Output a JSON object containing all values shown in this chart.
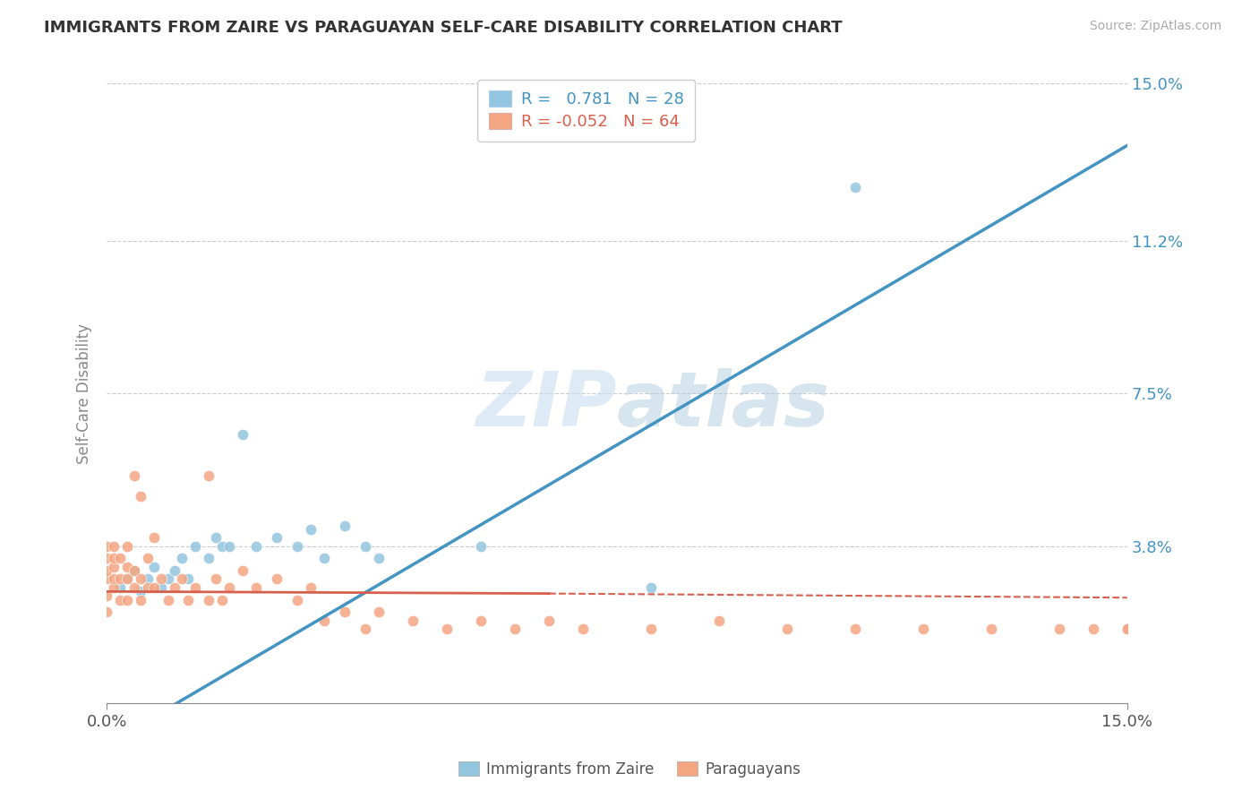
{
  "title": "IMMIGRANTS FROM ZAIRE VS PARAGUAYAN SELF-CARE DISABILITY CORRELATION CHART",
  "source": "Source: ZipAtlas.com",
  "ylabel": "Self-Care Disability",
  "xmin": 0.0,
  "xmax": 0.15,
  "ymin": 0.0,
  "ymax": 0.15,
  "right_yticks": [
    0.038,
    0.075,
    0.112,
    0.15
  ],
  "right_ytick_labels": [
    "3.8%",
    "7.5%",
    "11.2%",
    "15.0%"
  ],
  "xtick_labels": [
    "0.0%",
    "15.0%"
  ],
  "legend_R_blue": "0.781",
  "legend_N_blue": "28",
  "legend_R_pink": "-0.052",
  "legend_N_pink": "64",
  "blue_color": "#92c5de",
  "pink_color": "#f4a582",
  "blue_line_color": "#4393c3",
  "pink_line_color": "#d6604d",
  "watermark_color": "#ddeeff",
  "blue_scatter_x": [
    0.002,
    0.003,
    0.004,
    0.005,
    0.006,
    0.007,
    0.008,
    0.009,
    0.01,
    0.011,
    0.012,
    0.013,
    0.015,
    0.016,
    0.017,
    0.018,
    0.02,
    0.022,
    0.025,
    0.028,
    0.03,
    0.032,
    0.035,
    0.038,
    0.04,
    0.055,
    0.08,
    0.11
  ],
  "blue_scatter_y": [
    0.028,
    0.03,
    0.032,
    0.027,
    0.03,
    0.033,
    0.028,
    0.03,
    0.032,
    0.035,
    0.03,
    0.038,
    0.035,
    0.04,
    0.038,
    0.038,
    0.065,
    0.038,
    0.04,
    0.038,
    0.042,
    0.035,
    0.043,
    0.038,
    0.035,
    0.038,
    0.028,
    0.125
  ],
  "pink_scatter_x": [
    0.0,
    0.0,
    0.0,
    0.0,
    0.0,
    0.0,
    0.001,
    0.001,
    0.001,
    0.001,
    0.001,
    0.002,
    0.002,
    0.002,
    0.003,
    0.003,
    0.003,
    0.003,
    0.004,
    0.004,
    0.004,
    0.005,
    0.005,
    0.005,
    0.006,
    0.006,
    0.007,
    0.007,
    0.008,
    0.009,
    0.01,
    0.011,
    0.012,
    0.013,
    0.015,
    0.015,
    0.016,
    0.017,
    0.018,
    0.02,
    0.022,
    0.025,
    0.028,
    0.03,
    0.032,
    0.035,
    0.038,
    0.04,
    0.045,
    0.05,
    0.055,
    0.06,
    0.065,
    0.07,
    0.08,
    0.09,
    0.1,
    0.11,
    0.12,
    0.13,
    0.14,
    0.145,
    0.15,
    0.15
  ],
  "pink_scatter_y": [
    0.022,
    0.026,
    0.03,
    0.032,
    0.035,
    0.038,
    0.028,
    0.03,
    0.033,
    0.035,
    0.038,
    0.025,
    0.03,
    0.035,
    0.025,
    0.03,
    0.033,
    0.038,
    0.028,
    0.032,
    0.055,
    0.025,
    0.03,
    0.05,
    0.028,
    0.035,
    0.028,
    0.04,
    0.03,
    0.025,
    0.028,
    0.03,
    0.025,
    0.028,
    0.025,
    0.055,
    0.03,
    0.025,
    0.028,
    0.032,
    0.028,
    0.03,
    0.025,
    0.028,
    0.02,
    0.022,
    0.018,
    0.022,
    0.02,
    0.018,
    0.02,
    0.018,
    0.02,
    0.018,
    0.018,
    0.02,
    0.018,
    0.018,
    0.018,
    0.018,
    0.018,
    0.018,
    0.018,
    0.018
  ]
}
